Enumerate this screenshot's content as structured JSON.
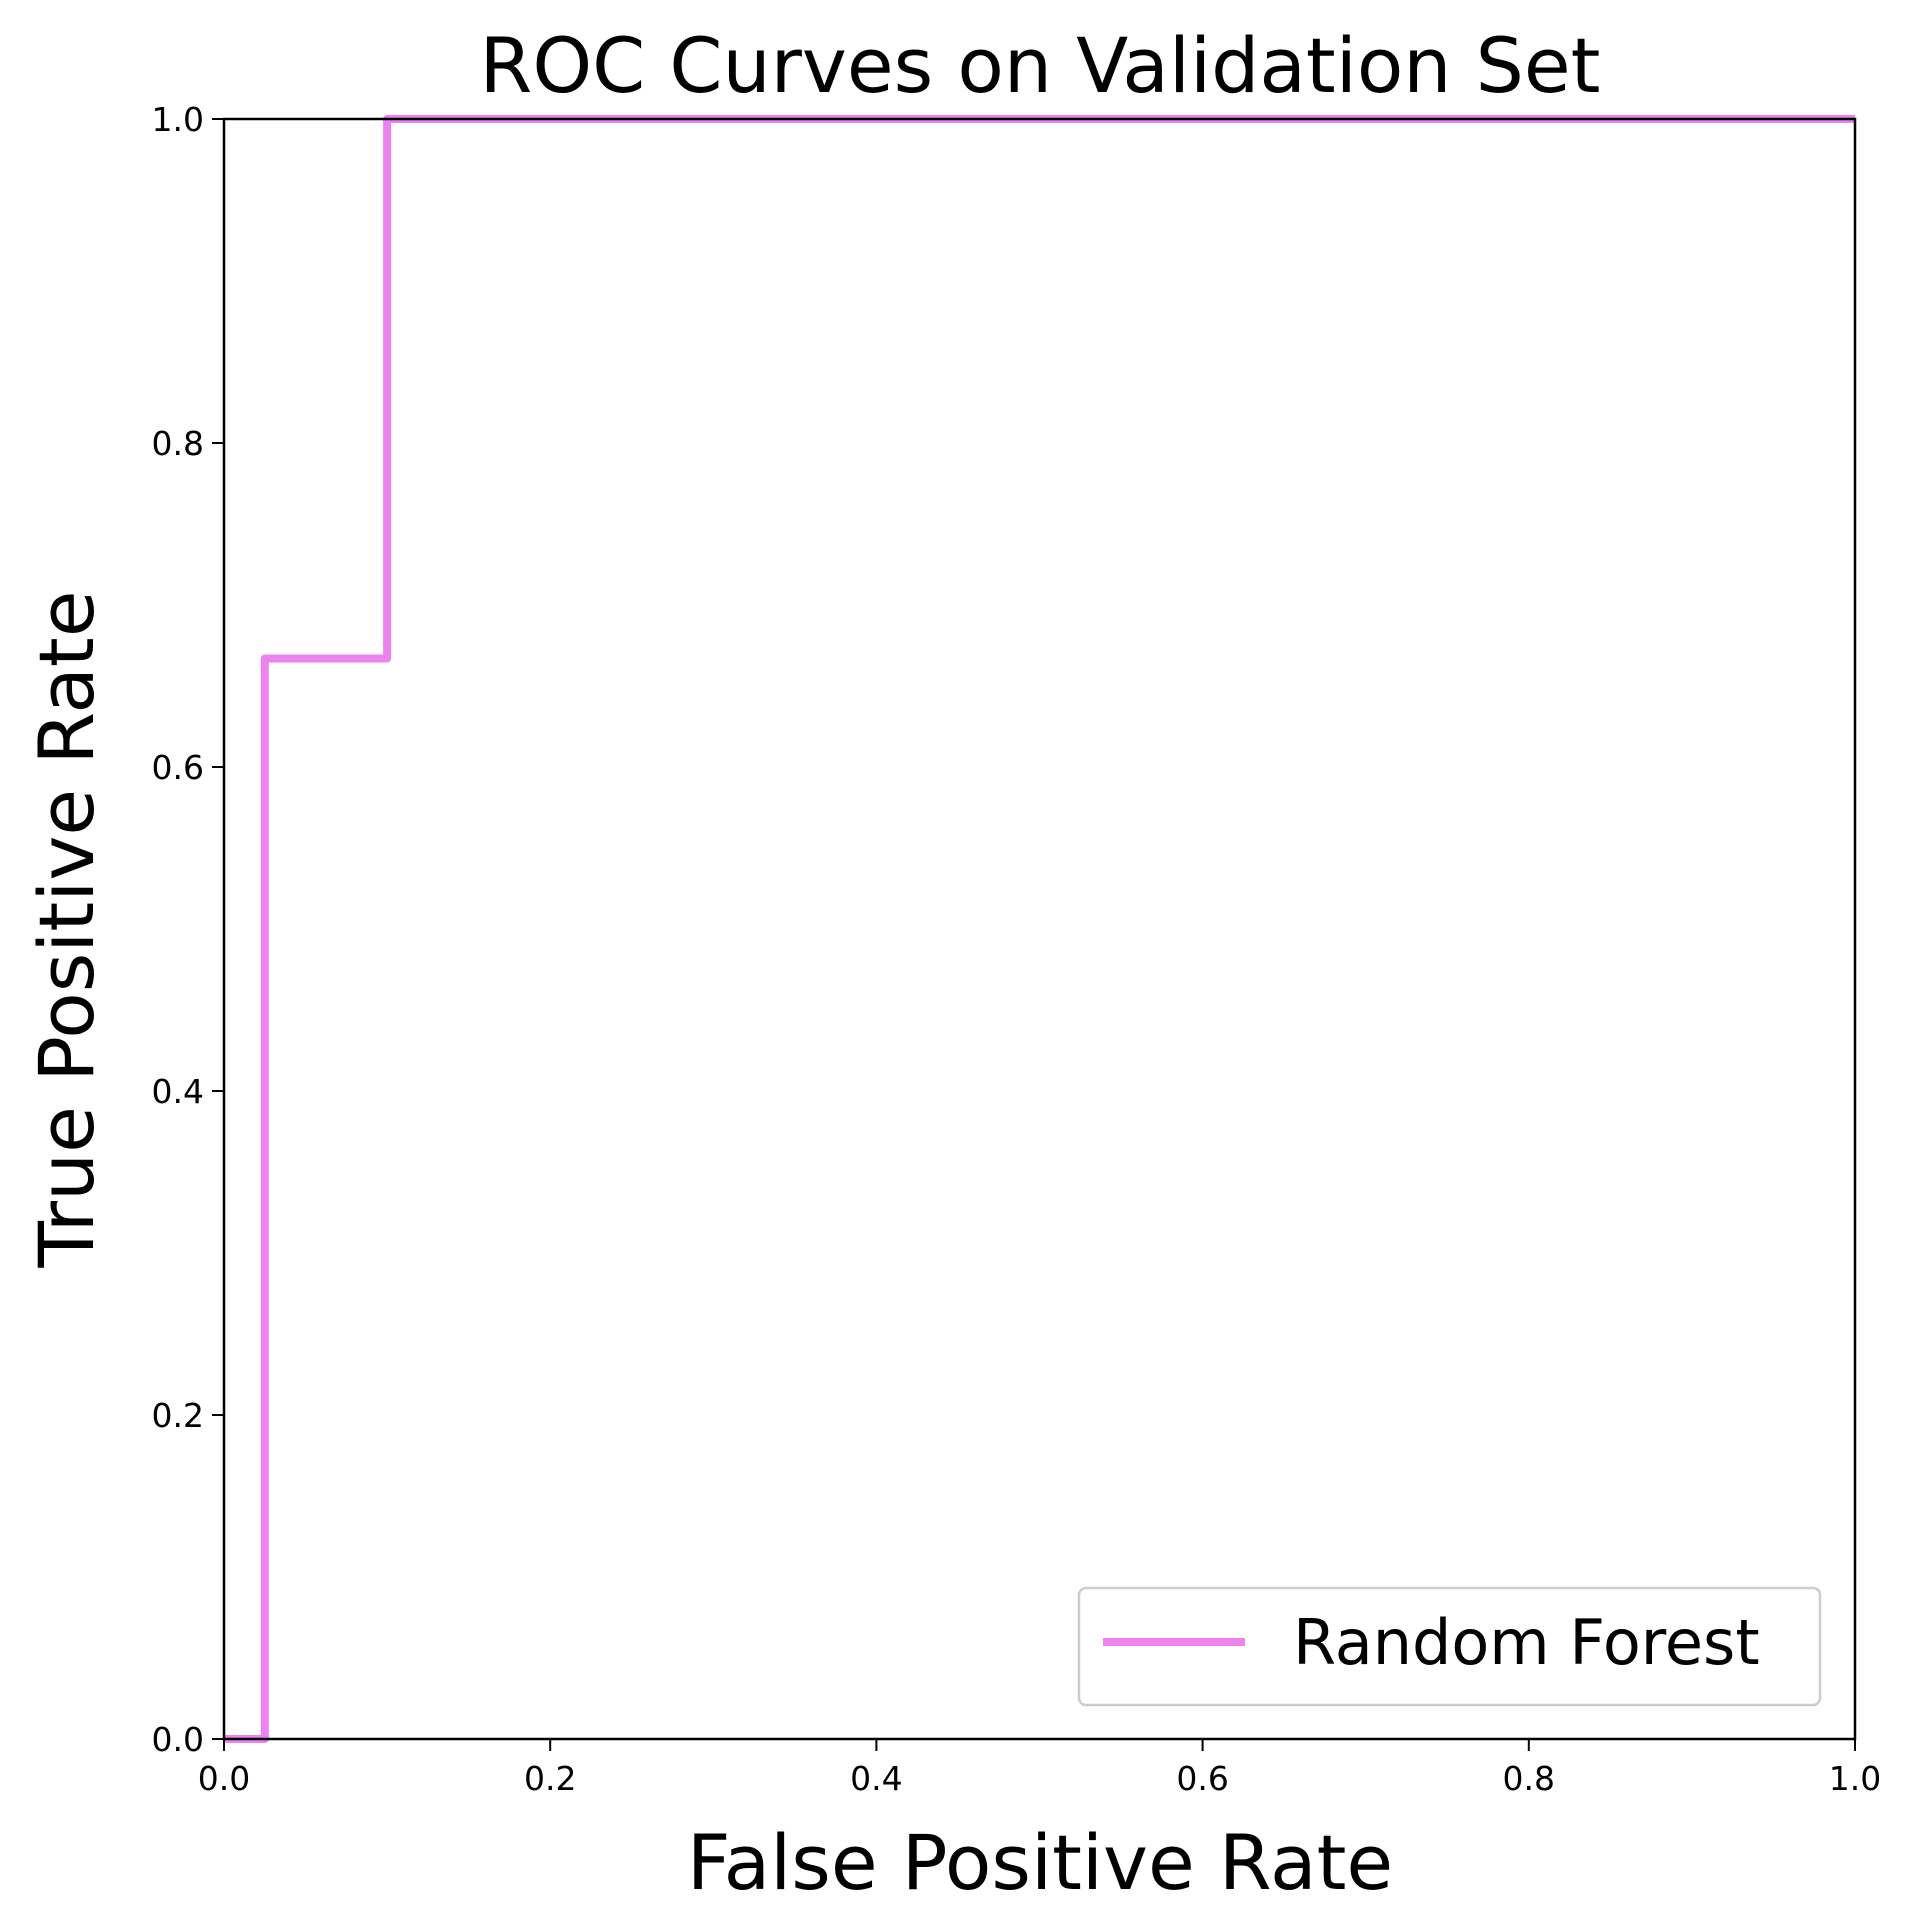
{
  "chart_data": {
    "type": "line",
    "title": "ROC Curves on Validation Set",
    "xlabel": "False Positive Rate",
    "ylabel": "True Positive Rate",
    "xlim": [
      0.0,
      1.0
    ],
    "ylim": [
      0.0,
      1.0
    ],
    "xticks": [
      "0.0",
      "0.2",
      "0.4",
      "0.6",
      "0.8",
      "1.0"
    ],
    "yticks": [
      "0.0",
      "0.2",
      "0.4",
      "0.6",
      "0.8",
      "1.0"
    ],
    "grid": false,
    "legend_position": "lower-right",
    "series": [
      {
        "name": "Random Forest",
        "color": "#ee82ee",
        "x": [
          0.0,
          0.025,
          0.025,
          0.1,
          0.1,
          1.0
        ],
        "y": [
          0.0,
          0.0,
          0.667,
          0.667,
          1.0,
          1.0
        ]
      }
    ]
  }
}
